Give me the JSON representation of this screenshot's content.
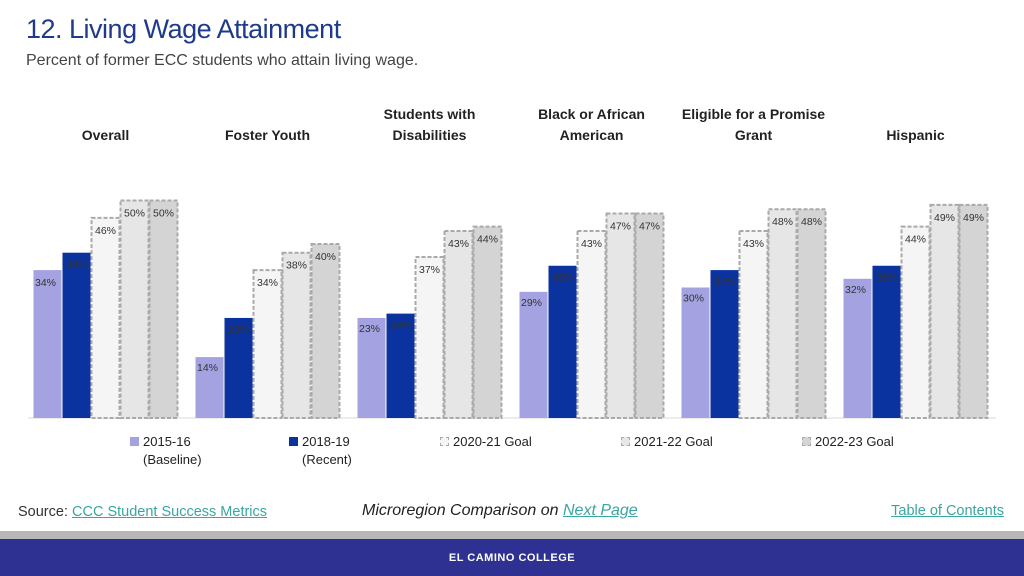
{
  "header": {
    "title": "12. Living Wage Attainment",
    "subtitle": "Percent of former ECC students who attain living wage."
  },
  "chart_data": {
    "type": "bar",
    "categories": [
      [
        "Overall"
      ],
      [
        "Foster Youth"
      ],
      [
        "Students with",
        "Disabilities"
      ],
      [
        "Black or African",
        "American"
      ],
      [
        "Eligible for a Promise",
        "Grant"
      ],
      [
        "Hispanic"
      ]
    ],
    "series": [
      {
        "name": "2015-16 (Baseline)",
        "values": [
          34,
          14,
          23,
          29,
          30,
          32
        ],
        "color": "#a4a2e0",
        "style": "solid"
      },
      {
        "name": "2018-19 (Recent)",
        "values": [
          38,
          23,
          24,
          35,
          34,
          35
        ],
        "color": "#0b33a0",
        "style": "solid"
      },
      {
        "name": "2020-21 Goal",
        "values": [
          46,
          34,
          37,
          43,
          43,
          44
        ],
        "color": "#f5f5f5",
        "style": "dashed"
      },
      {
        "name": "2021-22 Goal",
        "values": [
          50,
          38,
          43,
          47,
          48,
          49
        ],
        "color": "#e6e6e6",
        "style": "dashed"
      },
      {
        "name": "2022-23 Goal",
        "values": [
          50,
          40,
          44,
          47,
          48,
          49
        ],
        "color": "#d4d4d4",
        "style": "dashed"
      }
    ],
    "value_suffix": "%",
    "ylim": [
      0,
      50
    ],
    "grid": false,
    "legend_position": "bottom"
  },
  "legend": [
    {
      "line1": "2015-16",
      "line2": "(Baseline)"
    },
    {
      "line1": "2018-19",
      "line2": "(Recent)"
    },
    {
      "line1": "2020-21 Goal",
      "line2": ""
    },
    {
      "line1": "2021-22 Goal",
      "line2": ""
    },
    {
      "line1": "2022-23 Goal",
      "line2": ""
    }
  ],
  "footer": {
    "source_prefix": "Source:",
    "source_link": "CCC Student Success Metrics",
    "micro_text": "Microregion Comparison on",
    "micro_link": "Next Page",
    "toc_link": "Table of Contents",
    "college": "EL CAMINO COLLEGE"
  }
}
